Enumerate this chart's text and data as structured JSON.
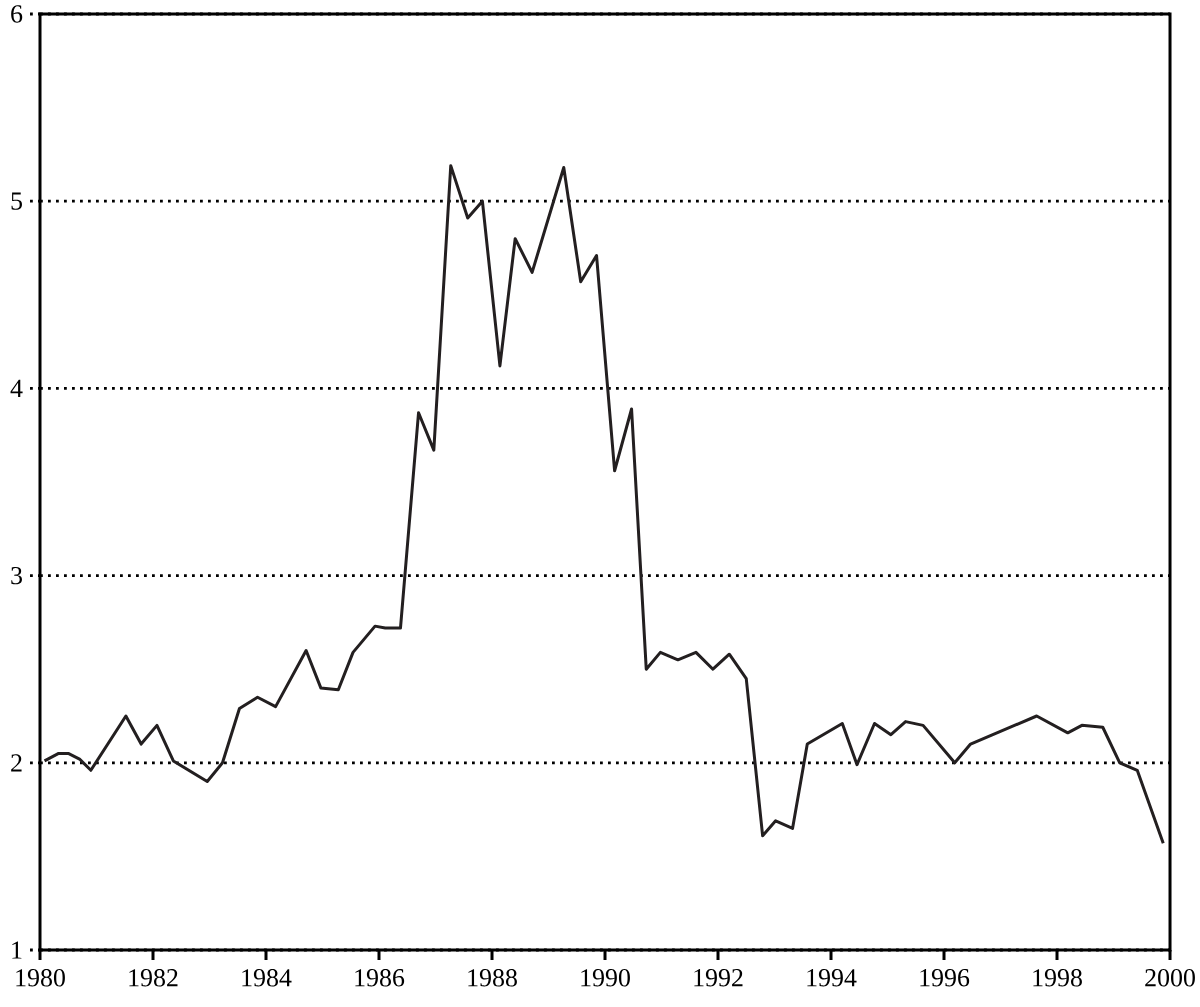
{
  "chart_data": {
    "type": "line",
    "x": [
      1980.08,
      1980.33,
      1980.5,
      1980.7,
      1980.9,
      1981.52,
      1981.79,
      1982.07,
      1982.36,
      1982.96,
      1983.23,
      1983.53,
      1983.85,
      1984.17,
      1984.71,
      1984.97,
      1985.28,
      1985.54,
      1985.93,
      1986.11,
      1986.38,
      1986.7,
      1986.97,
      1987.27,
      1987.57,
      1987.83,
      1988.14,
      1988.41,
      1988.71,
      1989.27,
      1989.57,
      1989.85,
      1990.17,
      1990.47,
      1990.73,
      1990.98,
      1991.29,
      1991.61,
      1991.91,
      1992.2,
      1992.5,
      1992.79,
      1993.02,
      1993.32,
      1993.58,
      1994.2,
      1994.46,
      1994.77,
      1995.06,
      1995.32,
      1995.63,
      1996.19,
      1996.47,
      1997.64,
      1998.19,
      1998.44,
      1998.81,
      1999.11,
      1999.42,
      1999.88
    ],
    "values": [
      2.01,
      2.05,
      2.05,
      2.02,
      1.96,
      2.25,
      2.1,
      2.2,
      2.01,
      1.9,
      2.0,
      2.29,
      2.35,
      2.3,
      2.6,
      2.4,
      2.39,
      2.59,
      2.73,
      2.72,
      2.72,
      3.87,
      3.67,
      5.19,
      4.91,
      5.0,
      4.12,
      4.8,
      4.62,
      5.18,
      4.57,
      4.71,
      3.56,
      3.89,
      2.5,
      2.59,
      2.55,
      2.59,
      2.5,
      2.58,
      2.45,
      1.61,
      1.69,
      1.65,
      2.1,
      2.21,
      1.99,
      2.21,
      2.15,
      2.22,
      2.2,
      2.0,
      2.1,
      2.25,
      2.16,
      2.2,
      2.19,
      2.0,
      1.96,
      1.57
    ],
    "color": "#231f20",
    "xlim": [
      1980,
      2000
    ],
    "ylim": [
      1,
      6
    ],
    "xticks": [
      1980,
      1982,
      1984,
      1986,
      1988,
      1990,
      1992,
      1994,
      1996,
      1998,
      2000
    ],
    "yticks": [
      1,
      2,
      3,
      4,
      5,
      6
    ],
    "grid": "y",
    "line_style": "solid"
  }
}
